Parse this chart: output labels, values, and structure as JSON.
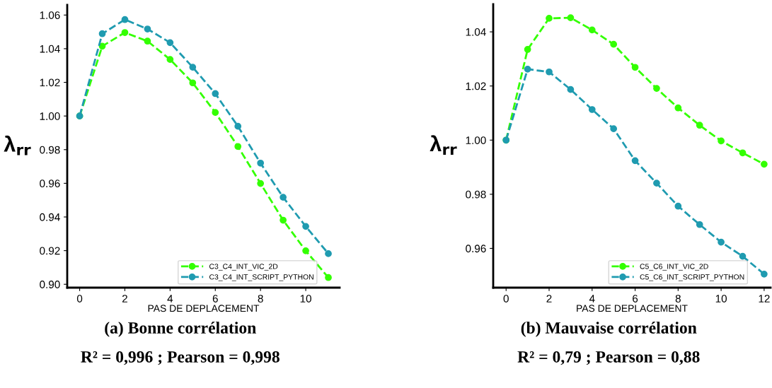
{
  "chart_data": [
    {
      "type": "line",
      "xlabel": "PAS DE DEPLACEMENT",
      "ylabel": "λ$_{rr}$",
      "marker": "circle",
      "line_style": "dashed",
      "legend": "bottom right",
      "grid": false,
      "x": [
        0,
        1,
        2,
        3,
        4,
        5,
        6,
        7,
        8,
        9,
        10,
        11
      ],
      "series": [
        {
          "name": "C3_C4_INT_VIC_2D",
          "color": "#33ff00",
          "values": [
            1.0,
            1.0415,
            1.0496,
            1.0445,
            1.0336,
            1.0197,
            1.0021,
            0.9819,
            0.9599,
            0.9381,
            0.9199,
            0.904
          ]
        },
        {
          "name": "C3_C4_INT_SCRIPT_PYTHON",
          "color": "#1f9bb0",
          "values": [
            1.0,
            1.0489,
            1.0573,
            1.0517,
            1.0436,
            1.029,
            1.0133,
            0.9939,
            0.972,
            0.9517,
            0.9344,
            0.9182
          ]
        }
      ],
      "xlim": [
        -0.55,
        11.5
      ],
      "xticks": [
        0,
        2,
        4,
        6,
        8,
        10
      ],
      "ylim": [
        0.898,
        1.066
      ],
      "yticks": [
        {
          "value": 0.9,
          "label": "0.90"
        },
        {
          "value": 0.92,
          "label": "0.92"
        },
        {
          "value": 0.94,
          "label": "0.94"
        },
        {
          "value": 0.96,
          "label": "0.96"
        },
        {
          "value": 0.98,
          "label": "0.98"
        },
        {
          "value": 1.0,
          "label": "1.00"
        },
        {
          "value": 1.02,
          "label": "1.02"
        },
        {
          "value": 1.04,
          "label": "1.04"
        },
        {
          "value": 1.06,
          "label": "1.06"
        }
      ],
      "annotations": [
        "(a) Bonne corrélation",
        "R² = 0,996 ; Pearson = 0,998"
      ]
    },
    {
      "type": "line",
      "xlabel": "PAS DE DEPLACEMENT",
      "ylabel": "λ$_{rr}$",
      "marker": "circle",
      "line_style": "dashed",
      "legend": "bottom right",
      "grid": false,
      "x": [
        0,
        1,
        2,
        3,
        4,
        5,
        6,
        7,
        8,
        9,
        10,
        11,
        12
      ],
      "series": [
        {
          "name": "C5_C6_INT_VIC_2D",
          "color": "#33ff00",
          "values": [
            1.0,
            1.0335,
            1.045,
            1.0452,
            1.0407,
            1.0354,
            1.0269,
            1.0191,
            1.0119,
            1.0055,
            0.9997,
            0.9953,
            0.9911
          ]
        },
        {
          "name": "C5_C6_INT_SCRIPT_PYTHON",
          "color": "#1f9bb0",
          "values": [
            1.0,
            1.0262,
            1.0252,
            1.0187,
            1.0113,
            1.0042,
            0.9924,
            0.9841,
            0.9756,
            0.9688,
            0.9623,
            0.9571,
            0.9505
          ]
        }
      ],
      "xlim": [
        -0.6,
        12.3
      ],
      "xticks": [
        0,
        2,
        4,
        6,
        8,
        10,
        12
      ],
      "ylim": [
        0.9455,
        1.0502
      ],
      "yticks": [
        {
          "value": 0.96,
          "label": "0.96"
        },
        {
          "value": 0.98,
          "label": "0.98"
        },
        {
          "value": 1.0,
          "label": "1.00"
        },
        {
          "value": 1.02,
          "label": "1.02"
        },
        {
          "value": 1.04,
          "label": "1.04"
        }
      ],
      "annotations": [
        "(b) Mauvaise corrélation",
        "R² = 0,79 ; Pearson = 0,88"
      ]
    }
  ]
}
